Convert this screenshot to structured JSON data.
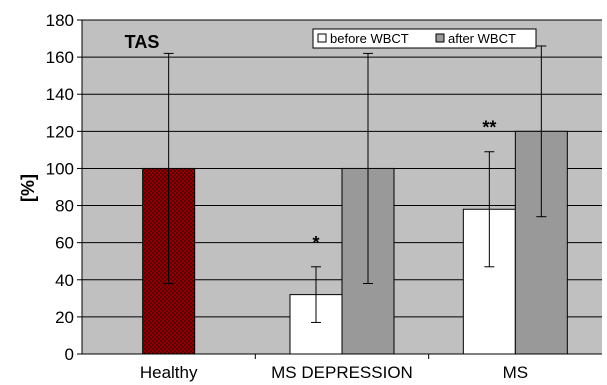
{
  "chart_data": {
    "type": "bar",
    "categories": [
      "Healthy",
      "MS DEPRESSION",
      "MS"
    ],
    "ylabel": "[%]",
    "ylim": [
      0,
      180
    ],
    "yticks": [
      0,
      20,
      40,
      60,
      80,
      100,
      120,
      140,
      160,
      180
    ],
    "grid": true,
    "legend_position": "top-right",
    "title_annotation": "TAS",
    "reference": {
      "category": "Healthy",
      "value": 100,
      "err_low": 38,
      "err_high": 162,
      "color": "#8b0000",
      "pattern": "dotted"
    },
    "series": [
      {
        "name": "before WBCT",
        "color": "#ffffff",
        "values": [
          null,
          32,
          78
        ],
        "err_low": [
          null,
          17,
          47
        ],
        "err_high": [
          null,
          47,
          109
        ]
      },
      {
        "name": "after WBCT",
        "color": "#999999",
        "values": [
          null,
          100,
          120
        ],
        "err_low": [
          null,
          38,
          74
        ],
        "err_high": [
          null,
          162,
          166
        ]
      }
    ],
    "significance": [
      {
        "category": "MS DEPRESSION",
        "label": "*"
      },
      {
        "category": "MS",
        "label": "**"
      }
    ],
    "plot_background": "#c0c0c0"
  }
}
